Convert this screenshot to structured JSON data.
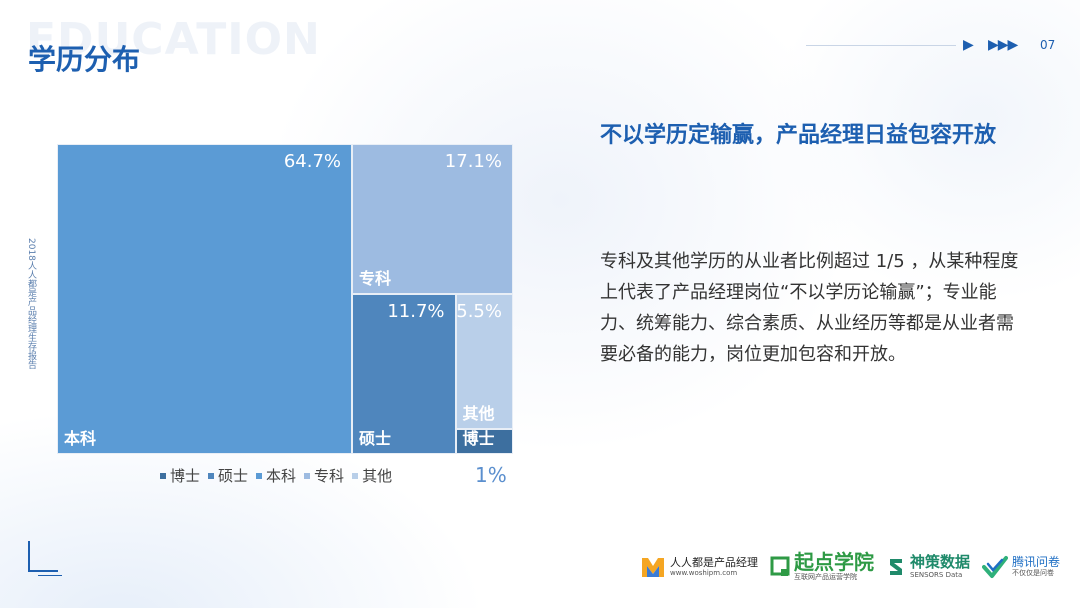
{
  "header": {
    "watermark": "EDUCATION",
    "title": "学历分布",
    "arrow_one": "▶",
    "arrow_three": "▶▶▶",
    "page_number": "07"
  },
  "source_label": "2018人人都是产品经理生存报告",
  "chart_data": {
    "type": "treemap",
    "unit": "%",
    "items": [
      {
        "category": "本科",
        "value": 64.7,
        "value_label": "64.7%",
        "color": "#5b9bd5"
      },
      {
        "category": "专科",
        "value": 17.1,
        "value_label": "17.1%",
        "color": "#9dbbe1"
      },
      {
        "category": "硕士",
        "value": 11.7,
        "value_label": "11.7%",
        "color": "#4f86bd"
      },
      {
        "category": "其他",
        "value": 5.5,
        "value_label": "5.5%",
        "color": "#b9cfe9"
      },
      {
        "category": "博士",
        "value": 1.0,
        "value_label": "1%",
        "color": "#3d6f9f"
      }
    ],
    "legend": [
      {
        "label": "博士",
        "color": "#3d6f9f"
      },
      {
        "label": "硕士",
        "color": "#4f86bd"
      },
      {
        "label": "本科",
        "color": "#5b9bd5"
      },
      {
        "label": "专科",
        "color": "#9dbbe1"
      },
      {
        "label": "其他",
        "color": "#b9cfe9"
      }
    ],
    "legend_position": "bottom"
  },
  "text_panel": {
    "headline": "不以学历定输赢，产品经理日益包容开放",
    "body": "专科及其他学历的从业者比例超过 1/5 ，从某种程度上代表了产品经理岗位“不以学历论输赢”；专业能力、统筹能力、综合素质、从业经历等都是从业者需要必备的能力，岗位更加包容和开放。"
  },
  "logos": [
    {
      "main": "人人都是产品经理",
      "sub": "www.woshipm.com"
    },
    {
      "main": "起点学院",
      "sub": "互联网产品运营学院"
    },
    {
      "main": "神策数据",
      "sub": "SENSORS Data"
    },
    {
      "main": "腾讯问卷",
      "sub": "不仅仅是问卷"
    }
  ]
}
